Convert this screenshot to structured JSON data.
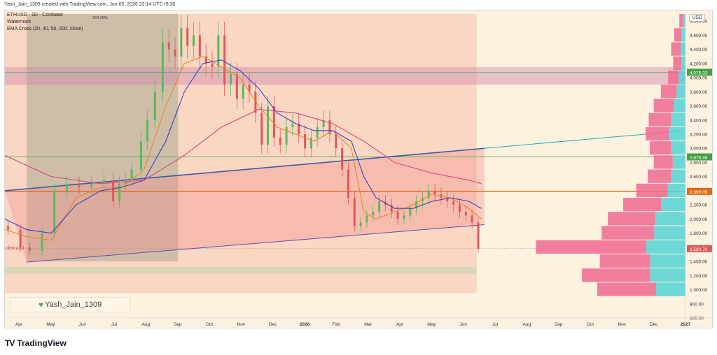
{
  "header": {
    "caption": "Yash_Jain_1309 created with TradingView.com, Jun 05, 2026 22:14 UTC+5:30"
  },
  "legend": {
    "symbol": "ETHUSD · 1D · Coinbase",
    "watermark": "Watermark",
    "indicator": "EMA Cross (20, 40, 50, 200, close)"
  },
  "currency": "USD",
  "watermark_text": "Yash_Jain_1309",
  "demand_label": "demand",
  "measure_label": "254.36%",
  "footer": {
    "brand": "TradingView",
    "brand_mark": "TV"
  },
  "colors": {
    "background": "#fdf1df",
    "ema20": "#e8872a",
    "ema50": "#3f3fc0",
    "ema200": "#d9487d",
    "up_candle": "#5cb85c",
    "down_candle": "#e15759",
    "channel_line": "#3b5ca8",
    "level_orange": "#e06a16",
    "level_green": "#4caf50",
    "trendline_cyan": "#1eb3b0",
    "vp_pink": "#ee6a92",
    "vp_cyan": "#55d3d6"
  },
  "chart_data": {
    "type": "line",
    "title": "ETHUSD · 1D · Coinbase",
    "x_ticks": [
      "Apr",
      "May",
      "Jun",
      "Jul",
      "Aug",
      "Sep",
      "Oct",
      "Nov",
      "Dec",
      "2026",
      "Feb",
      "Mar",
      "Apr",
      "May",
      "Jun",
      "Jul",
      "Aug",
      "Sep",
      "Oct",
      "Nov",
      "Dec",
      "2027"
    ],
    "y_ticks": [
      "4,800.00",
      "4,600.00",
      "4,400.00",
      "4,200.00",
      "4,000.00",
      "3,800.00",
      "3,600.00",
      "3,400.00",
      "3,200.00",
      "3,000.00",
      "2,800.00",
      "2,600.00",
      "2,400.00",
      "2,200.00",
      "2,000.00",
      "1,800.00",
      "1,600.00",
      "1,400.00",
      "1,200.00",
      "1,000.00",
      "800.00",
      "600.00"
    ],
    "ylim": [
      600,
      4950
    ],
    "price_labels": [
      {
        "text": "4,076.33",
        "value": 4076.33,
        "color": "#43a047"
      },
      {
        "text": "2,878.38",
        "value": 2878.38,
        "color": "#43a047"
      },
      {
        "text": "2,390.09",
        "value": 2390.09,
        "color": "#e06a16"
      },
      {
        "text": "1,580.70",
        "value": 1580.7,
        "color": "#e15759"
      }
    ],
    "series": [
      {
        "name": "ETHUSD",
        "x": [
          0,
          8,
          14,
          22,
          30,
          38,
          46,
          54,
          62,
          68,
          72,
          76,
          80,
          86,
          90,
          95,
          100,
          104,
          108,
          112,
          116,
          120,
          124,
          128,
          132,
          136,
          140,
          144,
          148,
          152,
          156,
          160,
          164,
          168,
          172,
          176,
          180,
          184,
          188,
          192,
          196,
          200,
          204,
          208,
          212,
          216,
          220,
          224,
          228,
          232,
          236,
          240,
          244,
          248,
          252,
          256,
          260,
          264,
          268,
          272,
          276,
          280,
          284,
          288,
          292,
          296,
          300,
          304,
          308,
          312,
          316,
          320,
          324,
          328,
          332,
          336,
          340,
          344,
          348,
          352,
          356,
          360,
          364
        ],
        "y": [
          1900,
          1850,
          1600,
          1550,
          1800,
          2400,
          2500,
          2450,
          2500,
          2550,
          2250,
          2500,
          2550,
          2700,
          3100,
          3400,
          3800,
          4500,
          4400,
          4300,
          4700,
          4450,
          4600,
          4300,
          4200,
          4150,
          4600,
          3900,
          4050,
          3700,
          3900,
          3800,
          3500,
          3050,
          3600,
          3150,
          3050,
          3300,
          3350,
          3200,
          3000,
          3150,
          3300,
          3400,
          3200,
          3000,
          2700,
          2300,
          1900,
          1950,
          2050,
          2100,
          2250,
          2200,
          2100,
          2000,
          2050,
          2150,
          2250,
          2300,
          2400,
          2350,
          2300,
          2250,
          2200,
          2100,
          2050,
          1950,
          1580.7,
          1580.7,
          1580.7,
          1580.7,
          1580.7,
          1580.7,
          1580.7,
          1580.7,
          1580.7,
          1580.7,
          1580.7,
          1580.7,
          1580.7,
          1580.7,
          1580.7
        ]
      },
      {
        "name": "EMA20",
        "x": [
          0,
          14,
          30,
          46,
          62,
          76,
          90,
          104,
          116,
          128,
          140,
          152,
          164,
          176,
          188,
          200,
          212,
          224,
          232,
          240,
          252,
          264,
          276,
          288,
          300,
          308
        ],
        "y": [
          1850,
          1750,
          1700,
          2300,
          2450,
          2450,
          2700,
          3600,
          4200,
          4300,
          4150,
          4000,
          3600,
          3300,
          3200,
          3100,
          3250,
          3000,
          2100,
          2000,
          2100,
          2200,
          2350,
          2300,
          2150,
          2000
        ]
      },
      {
        "name": "EMA50",
        "x": [
          0,
          14,
          30,
          46,
          62,
          76,
          90,
          104,
          116,
          128,
          140,
          152,
          164,
          176,
          188,
          200,
          212,
          224,
          232,
          240,
          252,
          264,
          276,
          288,
          300,
          308
        ],
        "y": [
          2000,
          1850,
          1800,
          2200,
          2400,
          2450,
          2550,
          3100,
          3800,
          4200,
          4250,
          4100,
          3850,
          3500,
          3350,
          3250,
          3250,
          3100,
          2600,
          2300,
          2150,
          2150,
          2250,
          2300,
          2250,
          2150
        ]
      },
      {
        "name": "EMA200",
        "x": [
          0,
          30,
          62,
          90,
          116,
          140,
          164,
          188,
          212,
          232,
          252,
          276,
          300,
          308
        ],
        "y": [
          2900,
          2600,
          2500,
          2550,
          2900,
          3300,
          3550,
          3500,
          3350,
          3100,
          2800,
          2650,
          2550,
          2500
        ]
      }
    ],
    "volume_profile": {
      "bins": [
        4800,
        4600,
        4400,
        4200,
        4000,
        3800,
        3600,
        3400,
        3200,
        3000,
        2800,
        2600,
        2400,
        2200,
        2000,
        1800,
        1600,
        1400,
        1200,
        1000
      ],
      "pink": [
        8,
        14,
        18,
        16,
        20,
        30,
        38,
        42,
        44,
        40,
        36,
        44,
        60,
        72,
        90,
        100,
        210,
        96,
        130,
        112
      ],
      "cyan": [
        4,
        8,
        10,
        8,
        14,
        18,
        24,
        30,
        34,
        30,
        26,
        30,
        36,
        50,
        62,
        64,
        80,
        72,
        72,
        60
      ]
    }
  }
}
